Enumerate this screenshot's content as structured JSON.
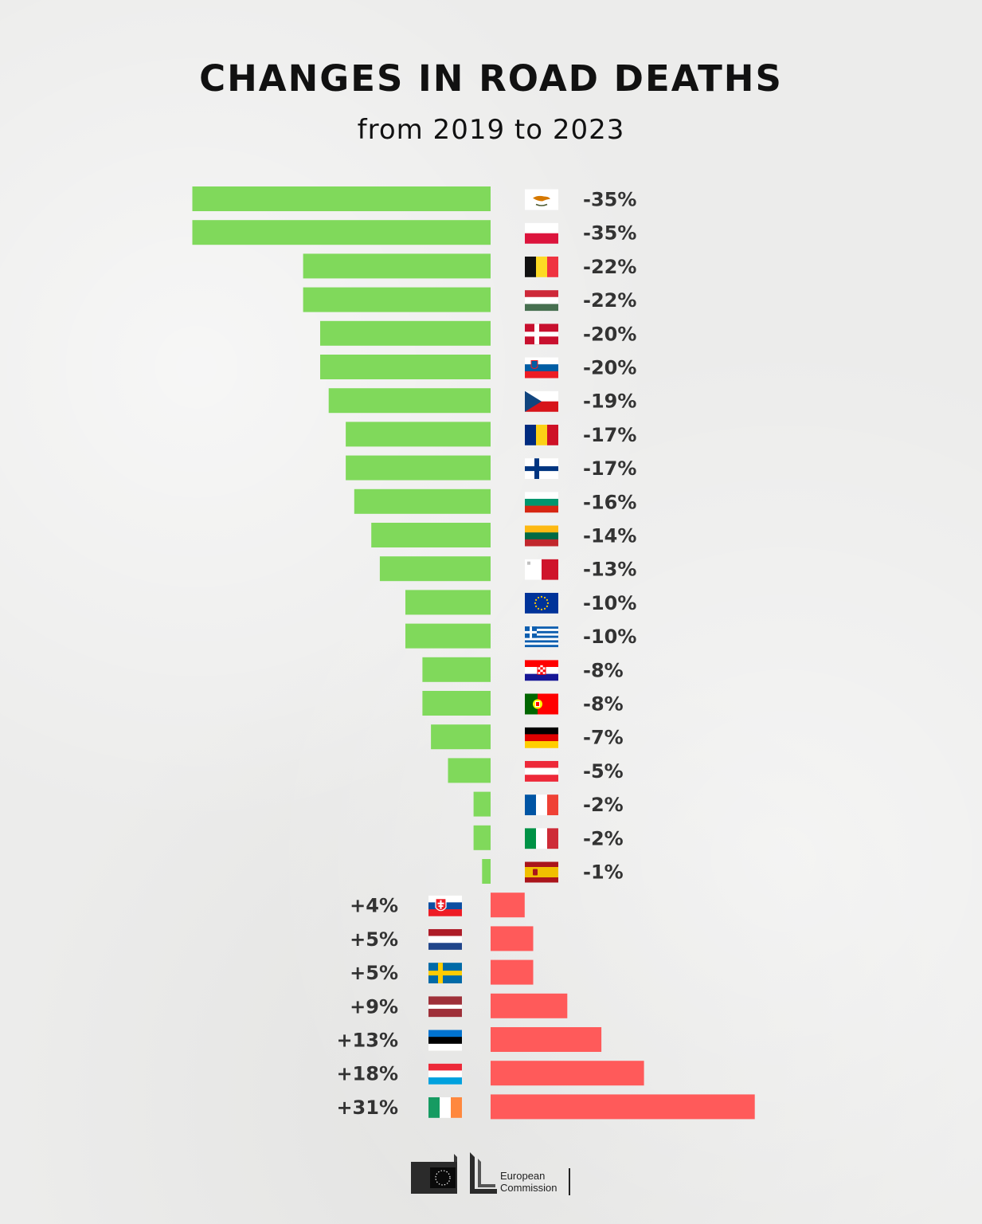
{
  "chart_data": {
    "type": "bar",
    "orientation": "horizontal",
    "title": "CHANGES IN ROAD DEATHS",
    "subtitle": "from 2019 to 2023",
    "unit": "%",
    "categories": [
      "Cyprus",
      "Poland",
      "Belgium",
      "Hungary",
      "Denmark",
      "Slovenia",
      "Czechia",
      "Romania",
      "Finland",
      "Bulgaria",
      "Lithuania",
      "Malta",
      "European Union",
      "Greece",
      "Croatia",
      "Portugal",
      "Germany",
      "Austria",
      "France",
      "Italy",
      "Spain",
      "Slovakia",
      "Netherlands",
      "Sweden",
      "Latvia",
      "Estonia",
      "Luxembourg",
      "Ireland"
    ],
    "values": [
      -35,
      -35,
      -22,
      -22,
      -20,
      -20,
      -19,
      -17,
      -17,
      -16,
      -14,
      -13,
      -10,
      -10,
      -8,
      -8,
      -7,
      -5,
      -2,
      -2,
      -1,
      4,
      5,
      5,
      9,
      13,
      18,
      31
    ],
    "labels": [
      "-35%",
      "-35%",
      "-22%",
      "-22%",
      "-20%",
      "-20%",
      "-19%",
      "-17%",
      "-17%",
      "-16%",
      "-14%",
      "-13%",
      "-10%",
      "-10%",
      "-8%",
      "-8%",
      "-7%",
      "-5%",
      "-2%",
      "-2%",
      "-1%",
      "+4%",
      "+5%",
      "+5%",
      "+9%",
      "+13%",
      "+18%",
      "+31%"
    ],
    "flag_icons": [
      "cyprus-flag",
      "poland-flag",
      "belgium-flag",
      "hungary-flag",
      "denmark-flag",
      "slovenia-flag",
      "czechia-flag",
      "romania-flag",
      "finland-flag",
      "bulgaria-flag",
      "lithuania-flag",
      "malta-flag",
      "eu-flag",
      "greece-flag",
      "croatia-flag",
      "portugal-flag",
      "germany-flag",
      "austria-flag",
      "france-flag",
      "italy-flag",
      "spain-flag",
      "slovakia-flag",
      "netherlands-flag",
      "sweden-flag",
      "latvia-flag",
      "estonia-flag",
      "luxembourg-flag",
      "ireland-flag"
    ],
    "colors": {
      "decrease": "#80d95b",
      "increase": "#ff5a5a"
    },
    "legend": "none",
    "grid": false
  },
  "footer": {
    "logo_icon": "european-commission-logo",
    "logo_text_line1": "European",
    "logo_text_line2": "Commission"
  }
}
